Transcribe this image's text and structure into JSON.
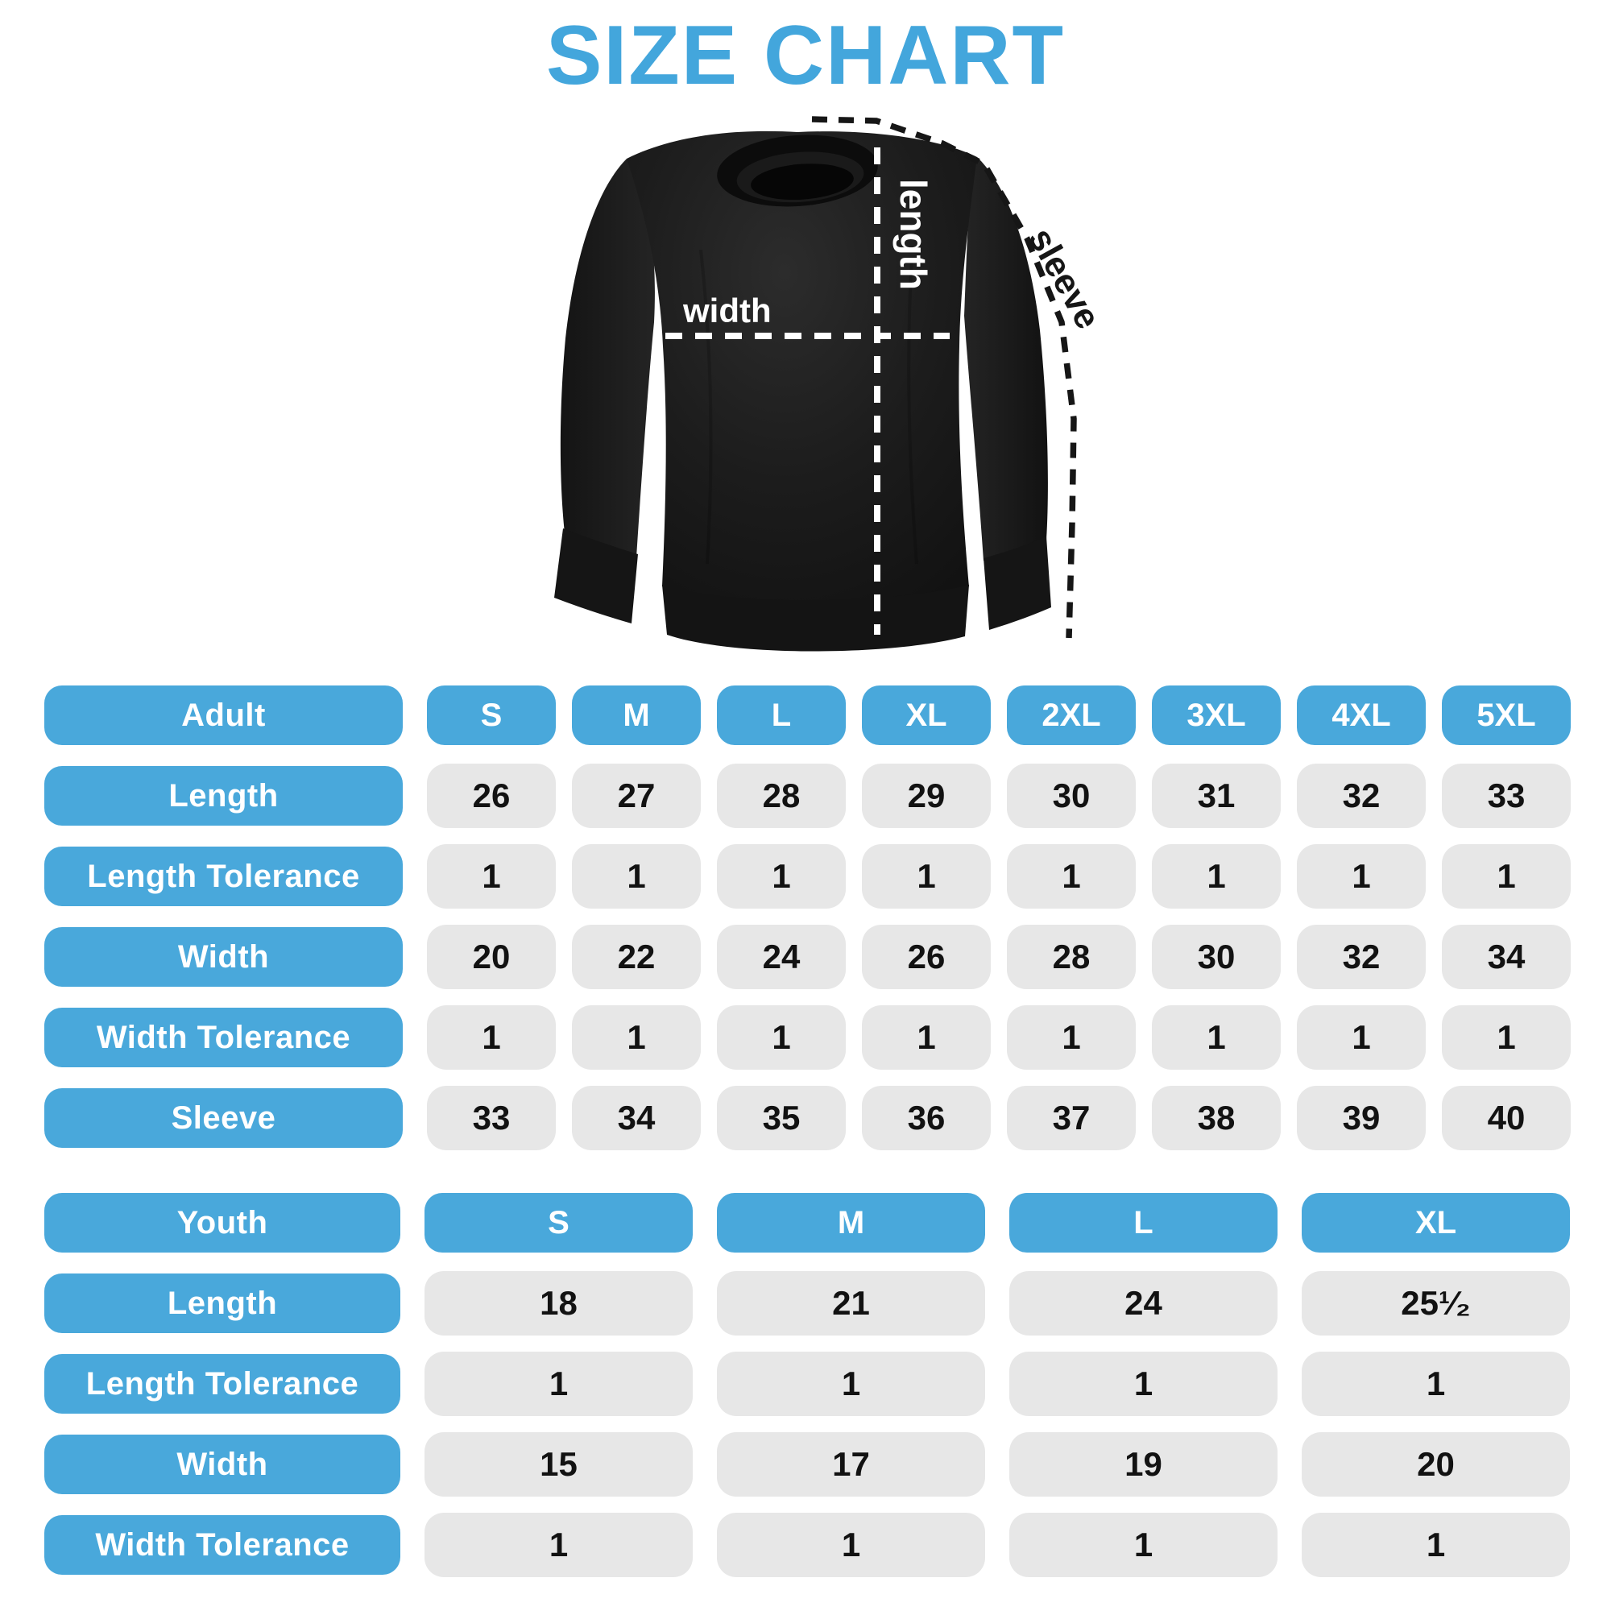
{
  "title": "SIZE CHART",
  "colors": {
    "accent": "#49a8db",
    "title": "#43a6dc",
    "cell": "#e7e7e7",
    "ink": "#121212",
    "shirt": "#1b1b1b",
    "diagram_line_dark": "#161616",
    "diagram_line_light": "#ffffff"
  },
  "diagram": {
    "garment": "black crewneck sweatshirt",
    "labels": {
      "width": "width",
      "length": "length",
      "sleeve": "sleeve"
    }
  },
  "adult_table": {
    "header_label": "Adult",
    "sizes": [
      "S",
      "M",
      "L",
      "XL",
      "2XL",
      "3XL",
      "4XL",
      "5XL"
    ],
    "rows": [
      {
        "label": "Length",
        "values": [
          "26",
          "27",
          "28",
          "29",
          "30",
          "31",
          "32",
          "33"
        ]
      },
      {
        "label": "Length Tolerance",
        "values": [
          "1",
          "1",
          "1",
          "1",
          "1",
          "1",
          "1",
          "1"
        ]
      },
      {
        "label": "Width",
        "values": [
          "20",
          "22",
          "24",
          "26",
          "28",
          "30",
          "32",
          "34"
        ]
      },
      {
        "label": "Width Tolerance",
        "values": [
          "1",
          "1",
          "1",
          "1",
          "1",
          "1",
          "1",
          "1"
        ]
      },
      {
        "label": "Sleeve",
        "values": [
          "33",
          "34",
          "35",
          "36",
          "37",
          "38",
          "39",
          "40"
        ]
      }
    ]
  },
  "youth_table": {
    "header_label": "Youth",
    "sizes": [
      "S",
      "M",
      "L",
      "XL"
    ],
    "rows": [
      {
        "label": "Length",
        "values": [
          "18",
          "21",
          "24",
          "25¹⁄₂"
        ]
      },
      {
        "label": "Length Tolerance",
        "values": [
          "1",
          "1",
          "1",
          "1"
        ]
      },
      {
        "label": "Width",
        "values": [
          "15",
          "17",
          "19",
          "20"
        ]
      },
      {
        "label": "Width Tolerance",
        "values": [
          "1",
          "1",
          "1",
          "1"
        ]
      }
    ]
  },
  "chart_data": [
    {
      "type": "table",
      "title": "Adult",
      "columns": [
        "S",
        "M",
        "L",
        "XL",
        "2XL",
        "3XL",
        "4XL",
        "5XL"
      ],
      "rows": [
        {
          "label": "Length",
          "values": [
            26,
            27,
            28,
            29,
            30,
            31,
            32,
            33
          ]
        },
        {
          "label": "Length Tolerance",
          "values": [
            1,
            1,
            1,
            1,
            1,
            1,
            1,
            1
          ]
        },
        {
          "label": "Width",
          "values": [
            20,
            22,
            24,
            26,
            28,
            30,
            32,
            34
          ]
        },
        {
          "label": "Width Tolerance",
          "values": [
            1,
            1,
            1,
            1,
            1,
            1,
            1,
            1
          ]
        },
        {
          "label": "Sleeve",
          "values": [
            33,
            34,
            35,
            36,
            37,
            38,
            39,
            40
          ]
        }
      ]
    },
    {
      "type": "table",
      "title": "Youth",
      "columns": [
        "S",
        "M",
        "L",
        "XL"
      ],
      "rows": [
        {
          "label": "Length",
          "values": [
            18,
            21,
            24,
            25.5
          ]
        },
        {
          "label": "Length Tolerance",
          "values": [
            1,
            1,
            1,
            1
          ]
        },
        {
          "label": "Width",
          "values": [
            15,
            17,
            19,
            20
          ]
        },
        {
          "label": "Width Tolerance",
          "values": [
            1,
            1,
            1,
            1
          ]
        }
      ]
    }
  ]
}
